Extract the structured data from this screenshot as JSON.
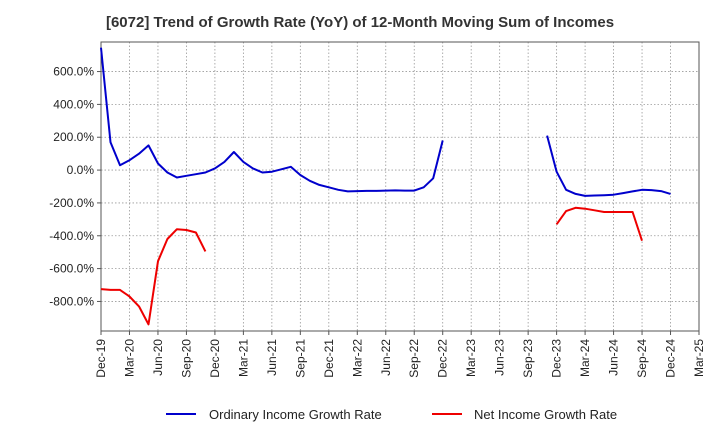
{
  "chart_data": {
    "type": "line",
    "title": "[6072]  Trend of Growth Rate (YoY) of 12-Month Moving Sum of Incomes",
    "xlabel": "",
    "ylabel": "",
    "ylim": [
      -980,
      780
    ],
    "yticks": [
      600,
      400,
      200,
      0,
      -200,
      -400,
      -600,
      -800
    ],
    "ytick_labels": [
      "600.0%",
      "400.0%",
      "200.0%",
      "0.0%",
      "-200.0%",
      "-400.0%",
      "-600.0%",
      "-800.0%"
    ],
    "xtick_labels": [
      "Dec-19",
      "Mar-20",
      "Jun-20",
      "Sep-20",
      "Dec-20",
      "Mar-21",
      "Jun-21",
      "Sep-21",
      "Dec-21",
      "Mar-22",
      "Jun-22",
      "Sep-22",
      "Dec-22",
      "Mar-23",
      "Jun-23",
      "Sep-23",
      "Dec-23",
      "Mar-24",
      "Jun-24",
      "Sep-24",
      "Dec-24",
      "Mar-25"
    ],
    "x_unit": "months since Dec-19",
    "grid": true,
    "legend_position": "bottom",
    "series": [
      {
        "name": "Ordinary Income Growth Rate",
        "color": "#0000cc",
        "segments": [
          [
            [
              0,
              745
            ],
            [
              1,
              170
            ],
            [
              2,
              30
            ],
            [
              3,
              60
            ],
            [
              4,
              100
            ],
            [
              5,
              150
            ],
            [
              6,
              40
            ],
            [
              7,
              -15
            ],
            [
              8,
              -45
            ],
            [
              9,
              -35
            ],
            [
              10,
              -25
            ],
            [
              11,
              -15
            ],
            [
              12,
              10
            ],
            [
              13,
              50
            ],
            [
              14,
              110
            ],
            [
              15,
              50
            ],
            [
              16,
              10
            ],
            [
              17,
              -15
            ],
            [
              18,
              -10
            ],
            [
              19,
              5
            ],
            [
              20,
              20
            ],
            [
              21,
              -30
            ],
            [
              22,
              -65
            ],
            [
              23,
              -90
            ],
            [
              24,
              -105
            ],
            [
              25,
              -120
            ],
            [
              26,
              -130
            ],
            [
              27,
              -128
            ],
            [
              28,
              -127
            ],
            [
              29,
              -127
            ],
            [
              30,
              -125
            ],
            [
              31,
              -124
            ],
            [
              32,
              -125
            ],
            [
              33,
              -125
            ],
            [
              34,
              -105
            ],
            [
              35,
              -50
            ],
            [
              36,
              180
            ]
          ],
          [
            [
              47,
              210
            ],
            [
              48,
              -10
            ],
            [
              49,
              -120
            ],
            [
              50,
              -145
            ],
            [
              51,
              -157
            ],
            [
              52,
              -155
            ],
            [
              53,
              -153
            ],
            [
              54,
              -150
            ],
            [
              55,
              -140
            ],
            [
              56,
              -130
            ],
            [
              57,
              -120
            ],
            [
              58,
              -122
            ],
            [
              59,
              -128
            ],
            [
              60,
              -145
            ]
          ]
        ]
      },
      {
        "name": "Net Income Growth Rate",
        "color": "#ee0000",
        "segments": [
          [
            [
              0,
              -725
            ],
            [
              1,
              -730
            ],
            [
              2,
              -730
            ],
            [
              3,
              -770
            ],
            [
              4,
              -830
            ],
            [
              5,
              -940
            ],
            [
              6,
              -555
            ],
            [
              7,
              -420
            ],
            [
              8,
              -360
            ],
            [
              9,
              -365
            ],
            [
              10,
              -380
            ],
            [
              11,
              -495
            ]
          ],
          [
            [
              48,
              -330
            ],
            [
              49,
              -250
            ],
            [
              50,
              -230
            ],
            [
              51,
              -235
            ],
            [
              52,
              -245
            ],
            [
              53,
              -255
            ],
            [
              54,
              -255
            ],
            [
              55,
              -255
            ],
            [
              56,
              -255
            ],
            [
              57,
              -430
            ]
          ]
        ]
      }
    ]
  }
}
